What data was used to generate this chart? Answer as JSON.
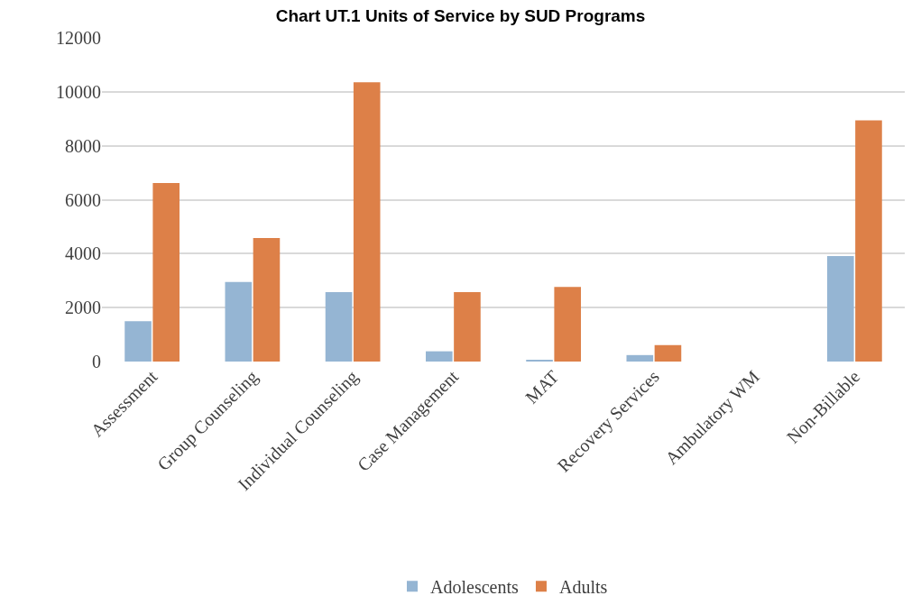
{
  "chart_data": {
    "type": "bar",
    "title": "Chart UT.1 Units of Service by SUD Programs",
    "categories": [
      "Assessment",
      "Group Counseling",
      "Individual Counseling",
      "Case Management",
      "MAT",
      "Recovery Services",
      "Ambulatory WM",
      "Non-Billable"
    ],
    "series": [
      {
        "name": "Adolescents",
        "color": "#95b5d3",
        "values": [
          1500,
          2950,
          2570,
          380,
          60,
          240,
          0,
          3910
        ]
      },
      {
        "name": "Adults",
        "color": "#dd8048",
        "values": [
          6620,
          4580,
          10350,
          2570,
          2770,
          610,
          0,
          8940
        ]
      }
    ],
    "ylim": [
      0,
      12000
    ],
    "yticks": [
      0,
      2000,
      4000,
      6000,
      8000,
      10000,
      12000
    ],
    "grid": "y",
    "legend": "bottom"
  }
}
